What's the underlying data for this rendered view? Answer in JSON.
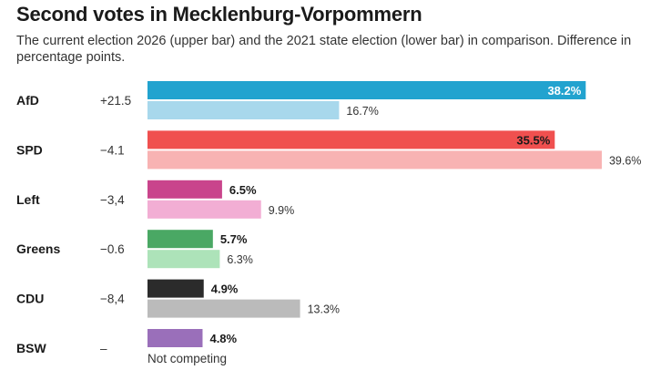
{
  "chart_data": {
    "type": "bar",
    "title": "Second votes in Mecklenburg-Vorpommern",
    "subtitle": "The current election 2026 (upper bar) and the 2021 state election (lower bar) in comparison. Difference in percentage points.",
    "series": [
      {
        "name": "2026",
        "labels": [
          "38.2%",
          "35.5%",
          "6.5%",
          "5.7%",
          "4.9%",
          "4.8%"
        ]
      },
      {
        "name": "2021",
        "labels": [
          "16.7%",
          "39.6%",
          "9.9%",
          "6.3%",
          "13.3%",
          ""
        ]
      }
    ],
    "parties": [
      {
        "name": "AfD",
        "diff": "+21.5",
        "current": 38.2,
        "previous": 16.7,
        "color_current": "#22a3cf",
        "color_previous": "#a8d8ec",
        "inside_label": true
      },
      {
        "name": "SPD",
        "diff": "−4.1",
        "current": 35.5,
        "previous": 39.6,
        "color_current": "#f0504f",
        "color_previous": "#f8b3b3",
        "inside_label": true
      },
      {
        "name": "Left",
        "diff": "−3,4",
        "current": 6.5,
        "previous": 9.9,
        "color_current": "#c9448c",
        "color_previous": "#f2aed4",
        "inside_label": false
      },
      {
        "name": "Greens",
        "diff": "−0.6",
        "current": 5.7,
        "previous": 6.3,
        "color_current": "#4aa864",
        "color_previous": "#ade3b9",
        "inside_label": false
      },
      {
        "name": "CDU",
        "diff": "−8,4",
        "current": 4.9,
        "previous": 13.3,
        "color_current": "#2b2b2b",
        "color_previous": "#bbbbbb",
        "inside_label": false
      },
      {
        "name": "BSW",
        "diff": "–",
        "current": 4.8,
        "previous": null,
        "color_current": "#9a6fba",
        "color_previous": null,
        "inside_label": false,
        "note": "Not competing"
      }
    ],
    "xlim": [
      0,
      41
    ]
  }
}
